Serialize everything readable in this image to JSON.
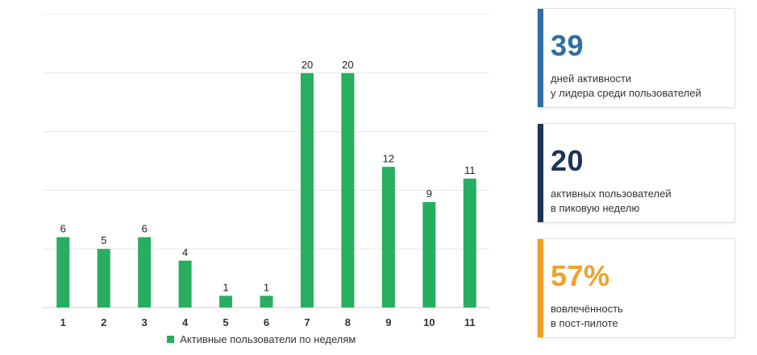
{
  "chart_data": {
    "type": "bar",
    "categories": [
      "1",
      "2",
      "3",
      "4",
      "5",
      "6",
      "7",
      "8",
      "9",
      "10",
      "11"
    ],
    "series": [
      {
        "name": "Активные пользователи по неделям",
        "values": [
          6,
          5,
          6,
          4,
          1,
          1,
          20,
          20,
          12,
          9,
          11
        ],
        "color": "#27ae60"
      }
    ],
    "ylim": [
      0,
      25
    ],
    "grid": true,
    "legend_placement": "bottom"
  },
  "legend": {
    "label": "Активные пользователи по неделям",
    "color": "#27ae60"
  },
  "cards": [
    {
      "value": "39",
      "line1": "дней активности",
      "line2": "у лидера среди пользователей",
      "accent": "#2f6ea5"
    },
    {
      "value": "20",
      "line1": "активных пользователей",
      "line2": "в пиковую неделю",
      "accent": "#1c3557"
    },
    {
      "value": "57%",
      "line1": "вовлечённость",
      "line2": "в пост-пилоте",
      "accent": "#f0a02a"
    }
  ]
}
